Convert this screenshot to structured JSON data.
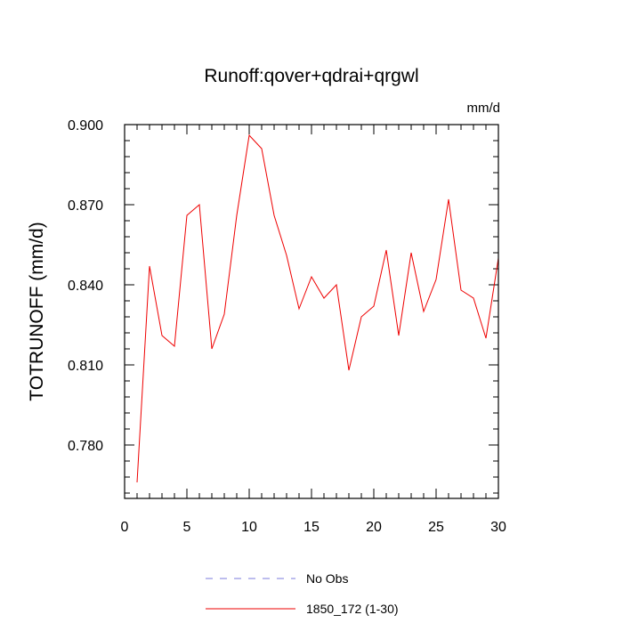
{
  "chart_data": {
    "type": "line",
    "title": "Runoff:qover+qdrai+qrgwl",
    "units": "mm/d",
    "xlabel": "",
    "ylabel": "TOTRUNOFF  (mm/d)",
    "xlim": [
      0,
      30
    ],
    "ylim": [
      0.76,
      0.9
    ],
    "x_ticks": [
      0,
      5,
      10,
      15,
      20,
      25,
      30
    ],
    "x_tick_labels": [
      "0",
      "5",
      "10",
      "15",
      "20",
      "25",
      "30"
    ],
    "y_ticks": [
      0.78,
      0.81,
      0.84,
      0.87,
      0.9
    ],
    "y_tick_labels": [
      "0.780",
      "0.810",
      "0.840",
      "0.870",
      "0.900"
    ],
    "x_minor_step": 1,
    "y_minor_step": 0.006,
    "grid": false,
    "legend_position": "bottom-center",
    "legend": [
      {
        "label": "No Obs",
        "color": "#7b7bdc",
        "dash": "dashed"
      },
      {
        "label": "1850_172 (1-30)",
        "color": "#ee0000",
        "dash": "solid"
      }
    ],
    "series": [
      {
        "name": "1850_172 (1-30)",
        "color": "#ee0000",
        "x": [
          1,
          2,
          3,
          4,
          5,
          6,
          7,
          8,
          9,
          10,
          11,
          12,
          13,
          14,
          15,
          16,
          17,
          18,
          19,
          20,
          21,
          22,
          23,
          24,
          25,
          26,
          27,
          28,
          29,
          30
        ],
        "y": [
          0.766,
          0.847,
          0.821,
          0.817,
          0.866,
          0.87,
          0.816,
          0.829,
          0.866,
          0.896,
          0.891,
          0.866,
          0.851,
          0.831,
          0.843,
          0.835,
          0.84,
          0.808,
          0.828,
          0.832,
          0.853,
          0.821,
          0.852,
          0.83,
          0.842,
          0.872,
          0.838,
          0.835,
          0.82,
          0.85
        ]
      }
    ]
  }
}
